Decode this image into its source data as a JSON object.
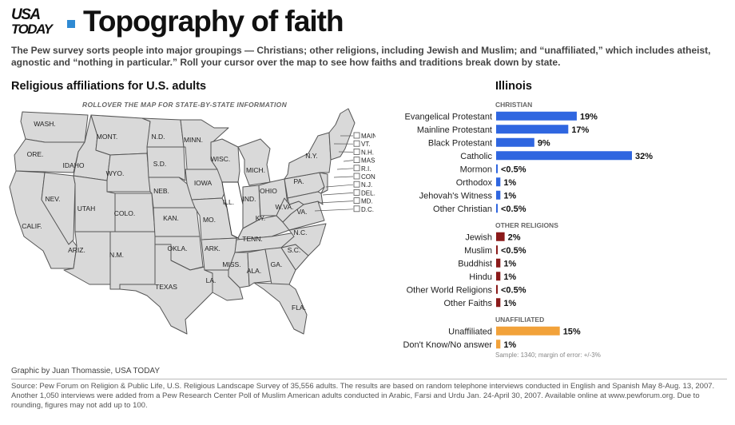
{
  "header": {
    "logo_line1": "USA",
    "logo_line2": "TODAY",
    "title": "Topography of faith",
    "intro": "The Pew survey sorts people into major groupings — Christians; other religions, including Jewish and Muslim; and “unaffiliated,” which includes atheist, agnostic and “nothing in particular.” Roll your cursor over the map to see how faiths and traditions break down by state.",
    "accent_color": "#2f8ad3"
  },
  "map": {
    "heading": "Religious affiliations for U.S. adults",
    "rollover_note": "ROLLOVER THE MAP FOR STATE-BY-STATE  INFORMATION",
    "selected_state": "Illinois",
    "state_labels": [
      "WASH.",
      "ORE.",
      "CALIF.",
      "IDAHO",
      "NEV.",
      "MONT.",
      "WYO.",
      "UTAH",
      "ARIZ.",
      "COLO.",
      "N.M.",
      "N.D.",
      "S.D.",
      "NEB.",
      "KAN.",
      "OKLA.",
      "TEXAS",
      "MINN.",
      "IOWA",
      "MO.",
      "ARK.",
      "LA.",
      "WISC.",
      "ILL.",
      "MICH.",
      "IND.",
      "OHIO",
      "KY.",
      "TENN.",
      "MISS.",
      "ALA.",
      "GA.",
      "FLA.",
      "S.C.",
      "N.C.",
      "VA.",
      "W.VA.",
      "PA.",
      "N.Y."
    ],
    "small_states": [
      "MAINE",
      "VT.",
      "N.H.",
      "MASS.",
      "R.I.",
      "CONN.",
      "N.J.",
      "DEL.",
      "MD.",
      "D.C."
    ]
  },
  "chart_data": {
    "type": "bar",
    "title": "Illinois",
    "groups": [
      {
        "name": "CHRISTIAN",
        "color": "#2f66e0",
        "items": [
          {
            "label": "Evangelical Protestant",
            "value": 19,
            "display": "19%"
          },
          {
            "label": "Mainline Protestant",
            "value": 17,
            "display": "17%"
          },
          {
            "label": "Black Protestant",
            "value": 9,
            "display": "9%"
          },
          {
            "label": "Catholic",
            "value": 32,
            "display": "32%"
          },
          {
            "label": "Mormon",
            "value": 0.3,
            "display": "<0.5%"
          },
          {
            "label": "Orthodox",
            "value": 1,
            "display": "1%"
          },
          {
            "label": "Jehovah's Witness",
            "value": 1,
            "display": "1%"
          },
          {
            "label": "Other Christian",
            "value": 0.3,
            "display": "<0.5%"
          }
        ]
      },
      {
        "name": "OTHER RELIGIONS",
        "color": "#8b1a1a",
        "items": [
          {
            "label": "Jewish",
            "value": 2,
            "display": "2%"
          },
          {
            "label": "Muslim",
            "value": 0.3,
            "display": "<0.5%"
          },
          {
            "label": "Buddhist",
            "value": 1,
            "display": "1%"
          },
          {
            "label": "Hindu",
            "value": 1,
            "display": "1%"
          },
          {
            "label": "Other World Religions",
            "value": 0.3,
            "display": "<0.5%"
          },
          {
            "label": "Other Faiths",
            "value": 1,
            "display": "1%"
          }
        ]
      },
      {
        "name": "UNAFFILIATED",
        "color": "#f2a23a",
        "items": [
          {
            "label": "Unaffiliated",
            "value": 15,
            "display": "15%"
          },
          {
            "label": "Don't Know/No answer",
            "value": 1,
            "display": "1%"
          }
        ]
      }
    ],
    "xlim": [
      0,
      32
    ],
    "note": "Sample: 1340; margin of error: +/-3%"
  },
  "footer": {
    "credit": "Graphic by Juan Thomassie, USA TODAY",
    "source": "Source: Pew Forum on Religion & Public Life, U.S. Religious Landscape Survey of 35,556 adults. The results are based on random telephone interviews conducted in English and Spanish May 8-Aug. 13, 2007. Another 1,050 interviews were added from a Pew Research Center Poll of Muslim American adults conducted in Arabic, Farsi and Urdu Jan. 24-April 30, 2007. Available online at www.pewforum.org. Due to rounding, figures may not add up to 100."
  }
}
